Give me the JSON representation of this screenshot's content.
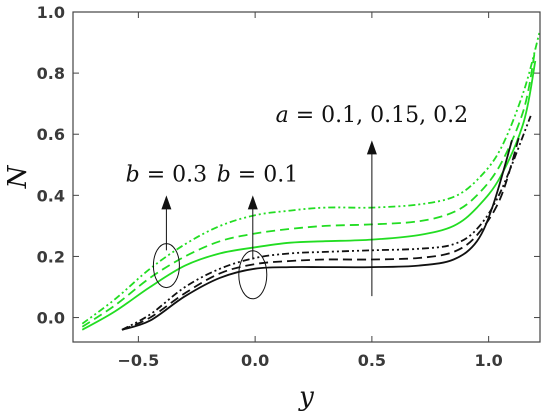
{
  "chart_data": {
    "type": "line",
    "xlabel": "y",
    "ylabel": "N",
    "xlim": [
      -0.78,
      1.22
    ],
    "ylim": [
      -0.08,
      1.0
    ],
    "x_ticks": [
      "-0.5",
      "0.0",
      "0.5",
      "1.0"
    ],
    "y_ticks": [
      "0.0",
      "0.2",
      "0.4",
      "0.6",
      "0.8",
      "1.0"
    ],
    "grid": false,
    "annotations": {
      "b_green": "b = 0.3",
      "b_black": "b = 0.1",
      "a_values": "a = 0.1, 0.15, 0.2"
    },
    "series": [
      {
        "color": "#22dd22",
        "dash": "solid",
        "x": [
          -0.74,
          -0.6,
          -0.45,
          -0.3,
          -0.15,
          0.0,
          0.15,
          0.3,
          0.5,
          0.7,
          0.85,
          0.95,
          1.05,
          1.15,
          1.2
        ],
        "y": [
          -0.04,
          0.02,
          0.1,
          0.17,
          0.21,
          0.23,
          0.245,
          0.25,
          0.255,
          0.27,
          0.3,
          0.36,
          0.46,
          0.64,
          0.84
        ]
      },
      {
        "color": "#22dd22",
        "dash": "dashed",
        "x": [
          -0.74,
          -0.6,
          -0.45,
          -0.3,
          -0.15,
          0.0,
          0.15,
          0.3,
          0.5,
          0.7,
          0.85,
          0.95,
          1.05,
          1.15,
          1.2
        ],
        "y": [
          -0.03,
          0.04,
          0.13,
          0.2,
          0.25,
          0.275,
          0.29,
          0.3,
          0.305,
          0.315,
          0.345,
          0.4,
          0.5,
          0.68,
          0.88
        ]
      },
      {
        "color": "#22dd22",
        "dash": "dashdotdot",
        "x": [
          -0.74,
          -0.6,
          -0.45,
          -0.3,
          -0.15,
          0.0,
          0.15,
          0.3,
          0.5,
          0.7,
          0.85,
          0.95,
          1.05,
          1.15,
          1.22
        ],
        "y": [
          -0.02,
          0.06,
          0.16,
          0.24,
          0.3,
          0.335,
          0.35,
          0.36,
          0.36,
          0.37,
          0.395,
          0.45,
          0.55,
          0.74,
          0.94
        ]
      },
      {
        "color": "#111111",
        "dash": "solid",
        "x": [
          -0.57,
          -0.45,
          -0.3,
          -0.15,
          0.0,
          0.15,
          0.3,
          0.5,
          0.7,
          0.85,
          0.95,
          1.02,
          1.1
        ],
        "y": [
          -0.04,
          -0.01,
          0.07,
          0.13,
          0.16,
          0.165,
          0.165,
          0.165,
          0.17,
          0.19,
          0.25,
          0.37,
          0.58
        ]
      },
      {
        "color": "#111111",
        "dash": "dashed",
        "x": [
          -0.57,
          -0.45,
          -0.3,
          -0.15,
          0.0,
          0.15,
          0.3,
          0.5,
          0.7,
          0.85,
          0.95,
          1.05,
          1.13
        ],
        "y": [
          -0.04,
          0.0,
          0.08,
          0.145,
          0.175,
          0.185,
          0.19,
          0.19,
          0.195,
          0.215,
          0.27,
          0.39,
          0.59
        ]
      },
      {
        "color": "#111111",
        "dash": "dashdotdot",
        "x": [
          -0.57,
          -0.45,
          -0.3,
          -0.15,
          0.0,
          0.15,
          0.3,
          0.5,
          0.7,
          0.85,
          0.95,
          1.05,
          1.18
        ],
        "y": [
          -0.04,
          0.01,
          0.1,
          0.16,
          0.195,
          0.21,
          0.215,
          0.22,
          0.225,
          0.24,
          0.29,
          0.41,
          0.66
        ]
      }
    ]
  }
}
